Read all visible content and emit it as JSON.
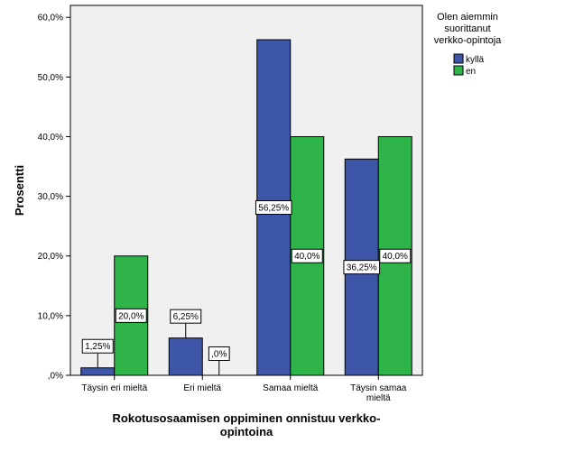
{
  "chart_data": {
    "type": "bar",
    "categories": [
      [
        "Täysin eri mieltä"
      ],
      [
        "Eri mieltä"
      ],
      [
        "Samaa mieltä"
      ],
      [
        "Täysin samaa",
        "mieltä"
      ]
    ],
    "series": [
      {
        "name": "kyllä",
        "color": "#3d56a8",
        "values": [
          1.25,
          6.25,
          56.25,
          36.25
        ],
        "labels": [
          "1,25%",
          "6,25%",
          "56,25%",
          "36,25%"
        ]
      },
      {
        "name": "en",
        "color": "#2fb44a",
        "values": [
          20.0,
          0.0,
          40.0,
          40.0
        ],
        "labels": [
          "20,0%",
          ",0%",
          "40,0%",
          "40,0%"
        ]
      }
    ],
    "ylim": [
      0,
      62
    ],
    "yticks": [
      0,
      10,
      20,
      30,
      40,
      50,
      60
    ],
    "ytick_labels": [
      ",0%",
      "10,0%",
      "20,0%",
      "30,0%",
      "40,0%",
      "50,0%",
      "60,0%"
    ],
    "ylabel": "Prosentti",
    "xlabel": [
      "Rokotusosaamisen oppiminen onnistuu verkko-",
      "opintoina"
    ],
    "legend": {
      "title": [
        "Olen aiemmin",
        "suorittanut",
        "verkko-opintoja"
      ],
      "placement": "top-right",
      "items": [
        "kyllä",
        "en"
      ]
    },
    "plot_background": "#f0f0f0",
    "grid": false
  }
}
